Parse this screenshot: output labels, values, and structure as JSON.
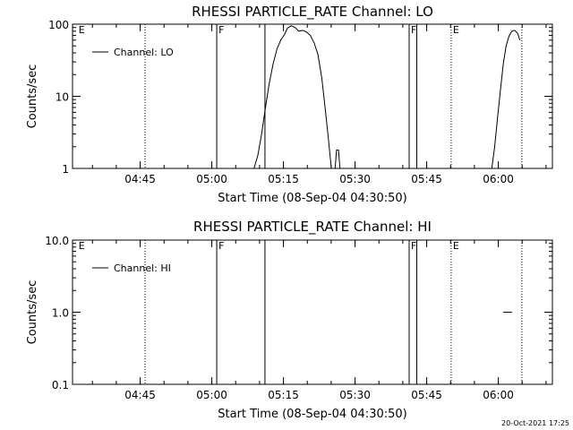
{
  "footer_timestamp": "20-Oct-2021 17:25",
  "chart_data": [
    {
      "type": "line",
      "title": "RHESSI PARTICLE_RATE Channel: LO",
      "xlabel": "Start Time (08-Sep-04 04:30:50)",
      "ylabel": "Counts/sec",
      "yscale": "log",
      "ylim": [
        1,
        100
      ],
      "xlim_minutes": [
        0,
        100.5
      ],
      "x_ticks": [
        {
          "label": "04:45",
          "minutes": 14.17
        },
        {
          "label": "05:00",
          "minutes": 29.17
        },
        {
          "label": "05:15",
          "minutes": 44.17
        },
        {
          "label": "05:30",
          "minutes": 59.17
        },
        {
          "label": "05:45",
          "minutes": 74.17
        },
        {
          "label": "06:00",
          "minutes": 89.17
        }
      ],
      "y_ticks": [
        {
          "label": "1",
          "value": 1
        },
        {
          "label": "10",
          "value": 10
        },
        {
          "label": "100",
          "value": 100
        }
      ],
      "legend": {
        "label": "Channel: LO",
        "placement": "top-left"
      },
      "markers": [
        {
          "minutes": 0.9,
          "label": "E",
          "style": "none"
        },
        {
          "minutes": 15.2,
          "label": "",
          "style": "dotted"
        },
        {
          "minutes": 30.2,
          "label": "F",
          "style": "solid"
        },
        {
          "minutes": 40.3,
          "label": "",
          "style": "solid"
        },
        {
          "minutes": 70.5,
          "label": "F",
          "style": "solid"
        },
        {
          "minutes": 72.1,
          "label": "",
          "style": "solid"
        },
        {
          "minutes": 79.3,
          "label": "E",
          "style": "dotted"
        },
        {
          "minutes": 94.1,
          "label": "",
          "style": "dotted"
        }
      ],
      "series": [
        {
          "segments": [
            [
              [
                38.0,
                1
              ],
              [
                38.8,
                1.5
              ],
              [
                39.6,
                3
              ],
              [
                40.4,
                7
              ],
              [
                41.2,
                15
              ],
              [
                42.0,
                28
              ],
              [
                42.8,
                45
              ],
              [
                43.6,
                60
              ],
              [
                44.4,
                72
              ],
              [
                45.0,
                88
              ],
              [
                45.8,
                95
              ],
              [
                46.6,
                90
              ],
              [
                47.4,
                80
              ],
              [
                48.2,
                82
              ],
              [
                49.0,
                78
              ],
              [
                49.8,
                70
              ],
              [
                50.6,
                55
              ],
              [
                51.4,
                38
              ],
              [
                52.2,
                18
              ],
              [
                53.0,
                6
              ],
              [
                53.6,
                2.5
              ],
              [
                54.2,
                1
              ]
            ],
            [
              [
                55.0,
                1
              ],
              [
                55.3,
                1.8
              ],
              [
                55.7,
                1.8
              ],
              [
                56.0,
                1
              ]
            ],
            [
              [
                87.8,
                1
              ],
              [
                88.4,
                2
              ],
              [
                89.0,
                5
              ],
              [
                89.6,
                12
              ],
              [
                90.2,
                28
              ],
              [
                90.8,
                50
              ],
              [
                91.4,
                68
              ],
              [
                92.0,
                80
              ],
              [
                92.6,
                82
              ],
              [
                93.2,
                75
              ],
              [
                93.7,
                60
              ]
            ]
          ]
        }
      ]
    },
    {
      "type": "line",
      "title": "RHESSI PARTICLE_RATE Channel: HI",
      "xlabel": "Start Time (08-Sep-04 04:30:50)",
      "ylabel": "Counts/sec",
      "yscale": "log",
      "ylim": [
        0.1,
        10
      ],
      "xlim_minutes": [
        0,
        100.5
      ],
      "x_ticks": [
        {
          "label": "04:45",
          "minutes": 14.17
        },
        {
          "label": "05:00",
          "minutes": 29.17
        },
        {
          "label": "05:15",
          "minutes": 44.17
        },
        {
          "label": "05:30",
          "minutes": 59.17
        },
        {
          "label": "05:45",
          "minutes": 74.17
        },
        {
          "label": "06:00",
          "minutes": 89.17
        }
      ],
      "y_ticks": [
        {
          "label": "0.1",
          "value": 0.1
        },
        {
          "label": "1.0",
          "value": 1
        },
        {
          "label": "10.0",
          "value": 10
        }
      ],
      "legend": {
        "label": "Channel: HI",
        "placement": "top-left"
      },
      "markers": [
        {
          "minutes": 0.9,
          "label": "E",
          "style": "none"
        },
        {
          "minutes": 15.2,
          "label": "",
          "style": "dotted"
        },
        {
          "minutes": 30.2,
          "label": "F",
          "style": "solid"
        },
        {
          "minutes": 40.3,
          "label": "",
          "style": "solid"
        },
        {
          "minutes": 70.5,
          "label": "F",
          "style": "solid"
        },
        {
          "minutes": 72.1,
          "label": "",
          "style": "solid"
        },
        {
          "minutes": 79.3,
          "label": "E",
          "style": "dotted"
        },
        {
          "minutes": 94.1,
          "label": "",
          "style": "dotted"
        }
      ],
      "series": [
        {
          "segments": [
            [
              [
                90.2,
                1
              ],
              [
                92.0,
                1
              ]
            ]
          ]
        }
      ]
    }
  ]
}
